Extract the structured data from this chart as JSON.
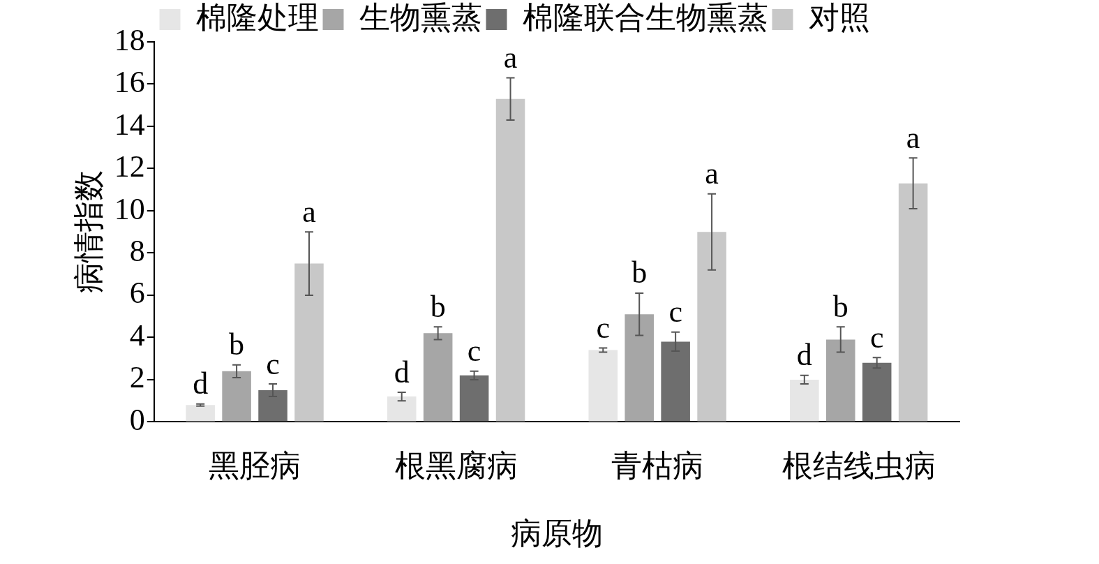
{
  "chart_data": {
    "type": "bar",
    "xlabel": "病原物",
    "ylabel": "病情指数",
    "categories": [
      "黑胫病",
      "根黑腐病",
      "青枯病",
      "根结线虫病"
    ],
    "series": [
      {
        "name": "棉隆处理",
        "color": "#e6e6e6",
        "values": [
          0.8,
          1.2,
          3.4,
          2.0
        ],
        "errors": [
          0.05,
          0.2,
          0.1,
          0.2
        ]
      },
      {
        "name": "生物熏蒸",
        "color": "#a6a6a6",
        "values": [
          2.4,
          4.2,
          5.1,
          3.9
        ],
        "errors": [
          0.3,
          0.3,
          1.0,
          0.6
        ]
      },
      {
        "name": "棉隆联合生物熏蒸",
        "color": "#6e6e6e",
        "values": [
          1.5,
          2.2,
          3.8,
          2.8
        ],
        "errors": [
          0.3,
          0.2,
          0.45,
          0.25
        ]
      },
      {
        "name": "对照",
        "color": "#c8c8c8",
        "values": [
          7.5,
          15.3,
          9.0,
          11.3
        ],
        "errors": [
          1.5,
          1.0,
          1.8,
          1.2
        ]
      }
    ],
    "annotations": [
      "d",
      "b",
      "c",
      "a",
      "d",
      "b",
      "c",
      "a",
      "c",
      "b",
      "c",
      "a",
      "d",
      "b",
      "c",
      "a"
    ],
    "ylim": [
      0,
      18
    ],
    "yticks": [
      0,
      2,
      4,
      6,
      8,
      10,
      12,
      14,
      16,
      18
    ],
    "grid": false,
    "legend": "top"
  }
}
